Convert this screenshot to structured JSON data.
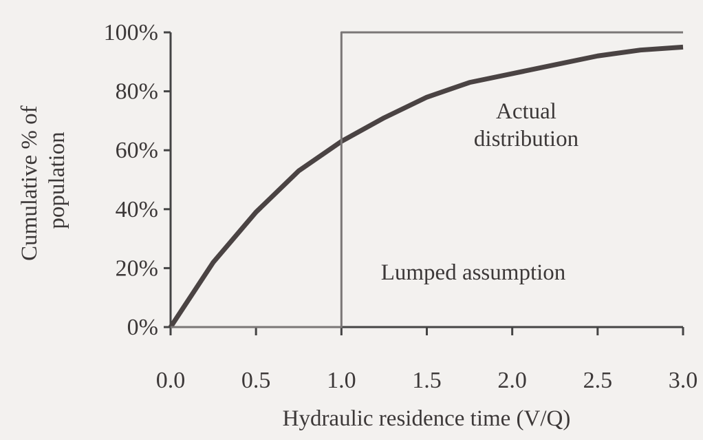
{
  "chart_data": {
    "type": "line",
    "xlabel": "Hydraulic residence time (V/Q)",
    "ylabel": [
      "Cumulative % of",
      "population"
    ],
    "xlim": [
      0,
      3
    ],
    "ylim": [
      0,
      100
    ],
    "xticks": [
      {
        "value": 0,
        "label": "0.0"
      },
      0.5,
      {
        "value": 1,
        "label": "1.0"
      },
      1.5,
      {
        "value": 2,
        "label": "2.0"
      },
      2.5,
      {
        "value": 3,
        "label": "3.0"
      }
    ],
    "yticks": [
      {
        "value": 0,
        "label": "0%"
      },
      {
        "value": 20,
        "label": "20%"
      },
      {
        "value": 40,
        "label": "40%"
      },
      {
        "value": 60,
        "label": "60%"
      },
      {
        "value": 80,
        "label": "80%"
      },
      {
        "value": 100,
        "label": "100%"
      }
    ],
    "series": [
      {
        "label": [
          "Actual",
          "distribution"
        ],
        "color": "#4a4343",
        "width": 7,
        "x": [
          0,
          0.25,
          0.5,
          0.75,
          1,
          1.25,
          1.5,
          1.75,
          2,
          2.25,
          2.5,
          2.75,
          3
        ],
        "values": [
          0,
          22,
          39,
          53,
          63,
          71,
          78,
          83,
          86,
          89,
          92,
          94,
          95
        ]
      },
      {
        "label": [
          "Lumped assumption"
        ],
        "color": "#7a7676",
        "width": 3,
        "x": [
          0,
          1,
          1,
          3
        ],
        "values": [
          0,
          0,
          100,
          100
        ]
      }
    ]
  }
}
